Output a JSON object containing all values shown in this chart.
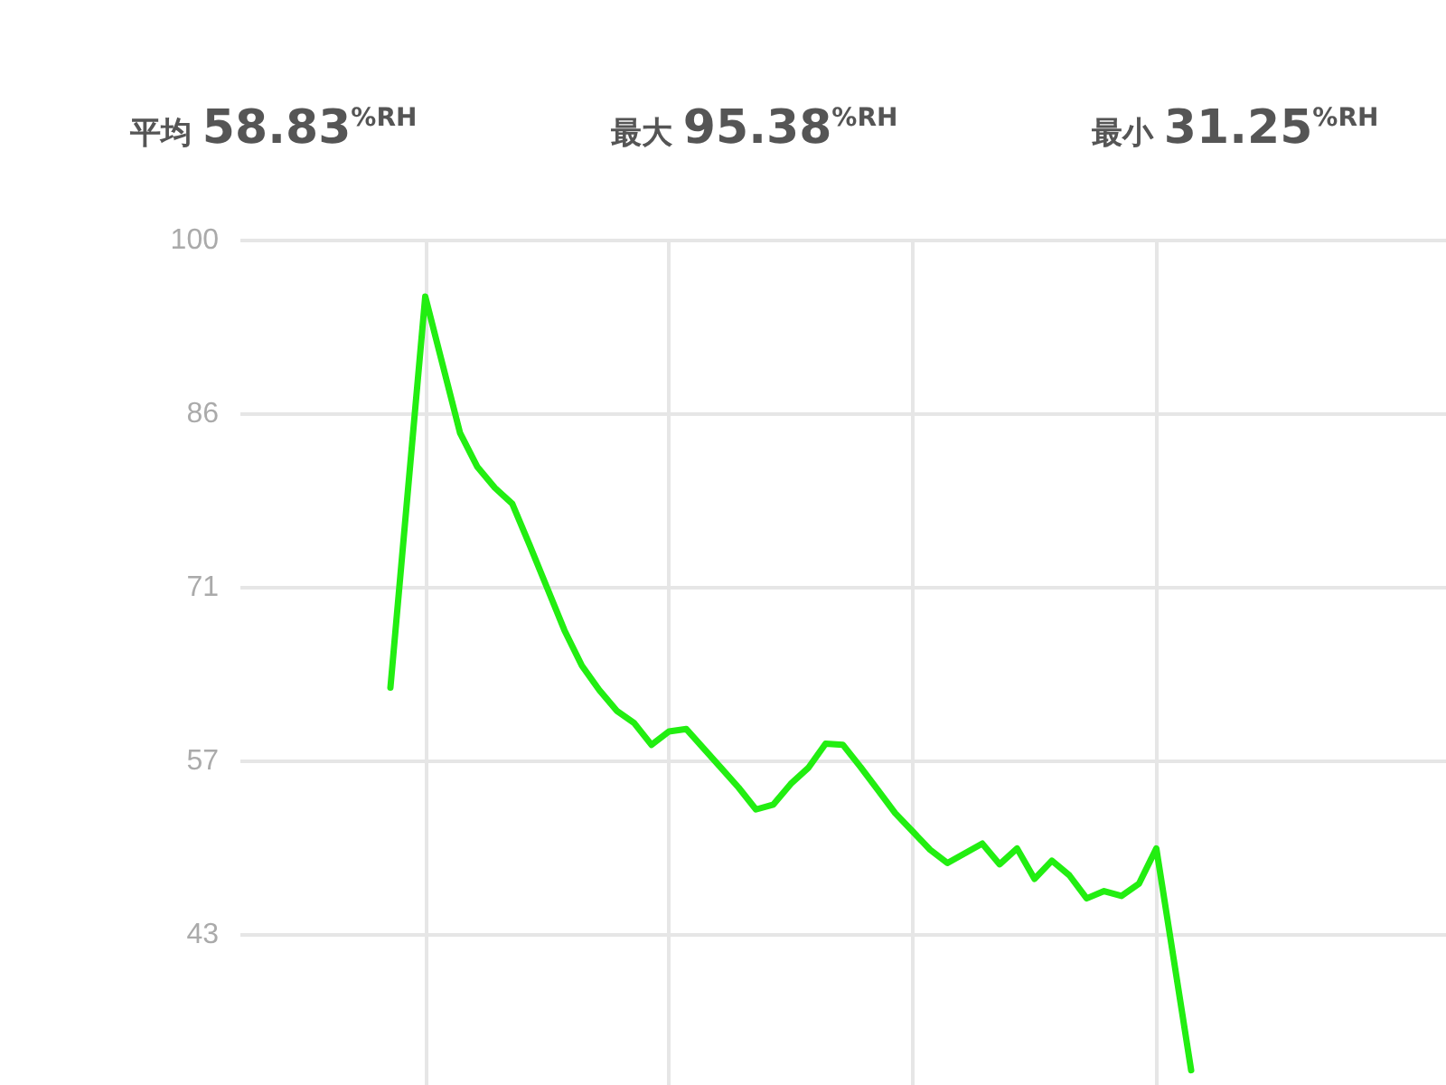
{
  "chart_data": {
    "type": "line",
    "annotations": [
      "平均 58.83$^{%RH}$",
      "最大 95.38$^{%RH}$",
      "最小 31.25$^{%RH}$"
    ],
    "categories": [
      null,
      null,
      null,
      null,
      null,
      null,
      null,
      null,
      null,
      null,
      null,
      null,
      null,
      null,
      null,
      null,
      null,
      null,
      null,
      null,
      null,
      null,
      null,
      null,
      null,
      null,
      null,
      null,
      null,
      null,
      null,
      null,
      null,
      null,
      null,
      null,
      null,
      null,
      null,
      null,
      null,
      null,
      null,
      null,
      null,
      null,
      null
    ],
    "series": [
      {
        "color": "#22ee11",
        "values": [
          63.3,
          79.4,
          95.4,
          89.8,
          84.2,
          81.4,
          79.7,
          78.4,
          75.0,
          71.5,
          68.0,
          65.1,
          63.1,
          61.4,
          60.4,
          58.6,
          59.7,
          59.9,
          58.3,
          56.7,
          55.1,
          53.3,
          53.7,
          55.4,
          56.7,
          58.7,
          58.6,
          56.8,
          54.9,
          53.0,
          51.5,
          50.0,
          48.9,
          49.7,
          50.5,
          48.8,
          50.1,
          47.6,
          49.1,
          47.9,
          46.0,
          46.6,
          46.2,
          47.2,
          50.1,
          41.0,
          31.9
        ]
      }
    ],
    "ylim": [
      30,
      100
    ],
    "yticks": [
      {
        "value": 43,
        "label": "43"
      },
      {
        "value": 57.25,
        "label": "57"
      },
      {
        "value": 71.5,
        "label": "71"
      },
      {
        "value": 85.75,
        "label": "86"
      },
      100
    ],
    "tick_labels": "y",
    "grid": true,
    "marker": "none",
    "line_style": "solid"
  }
}
